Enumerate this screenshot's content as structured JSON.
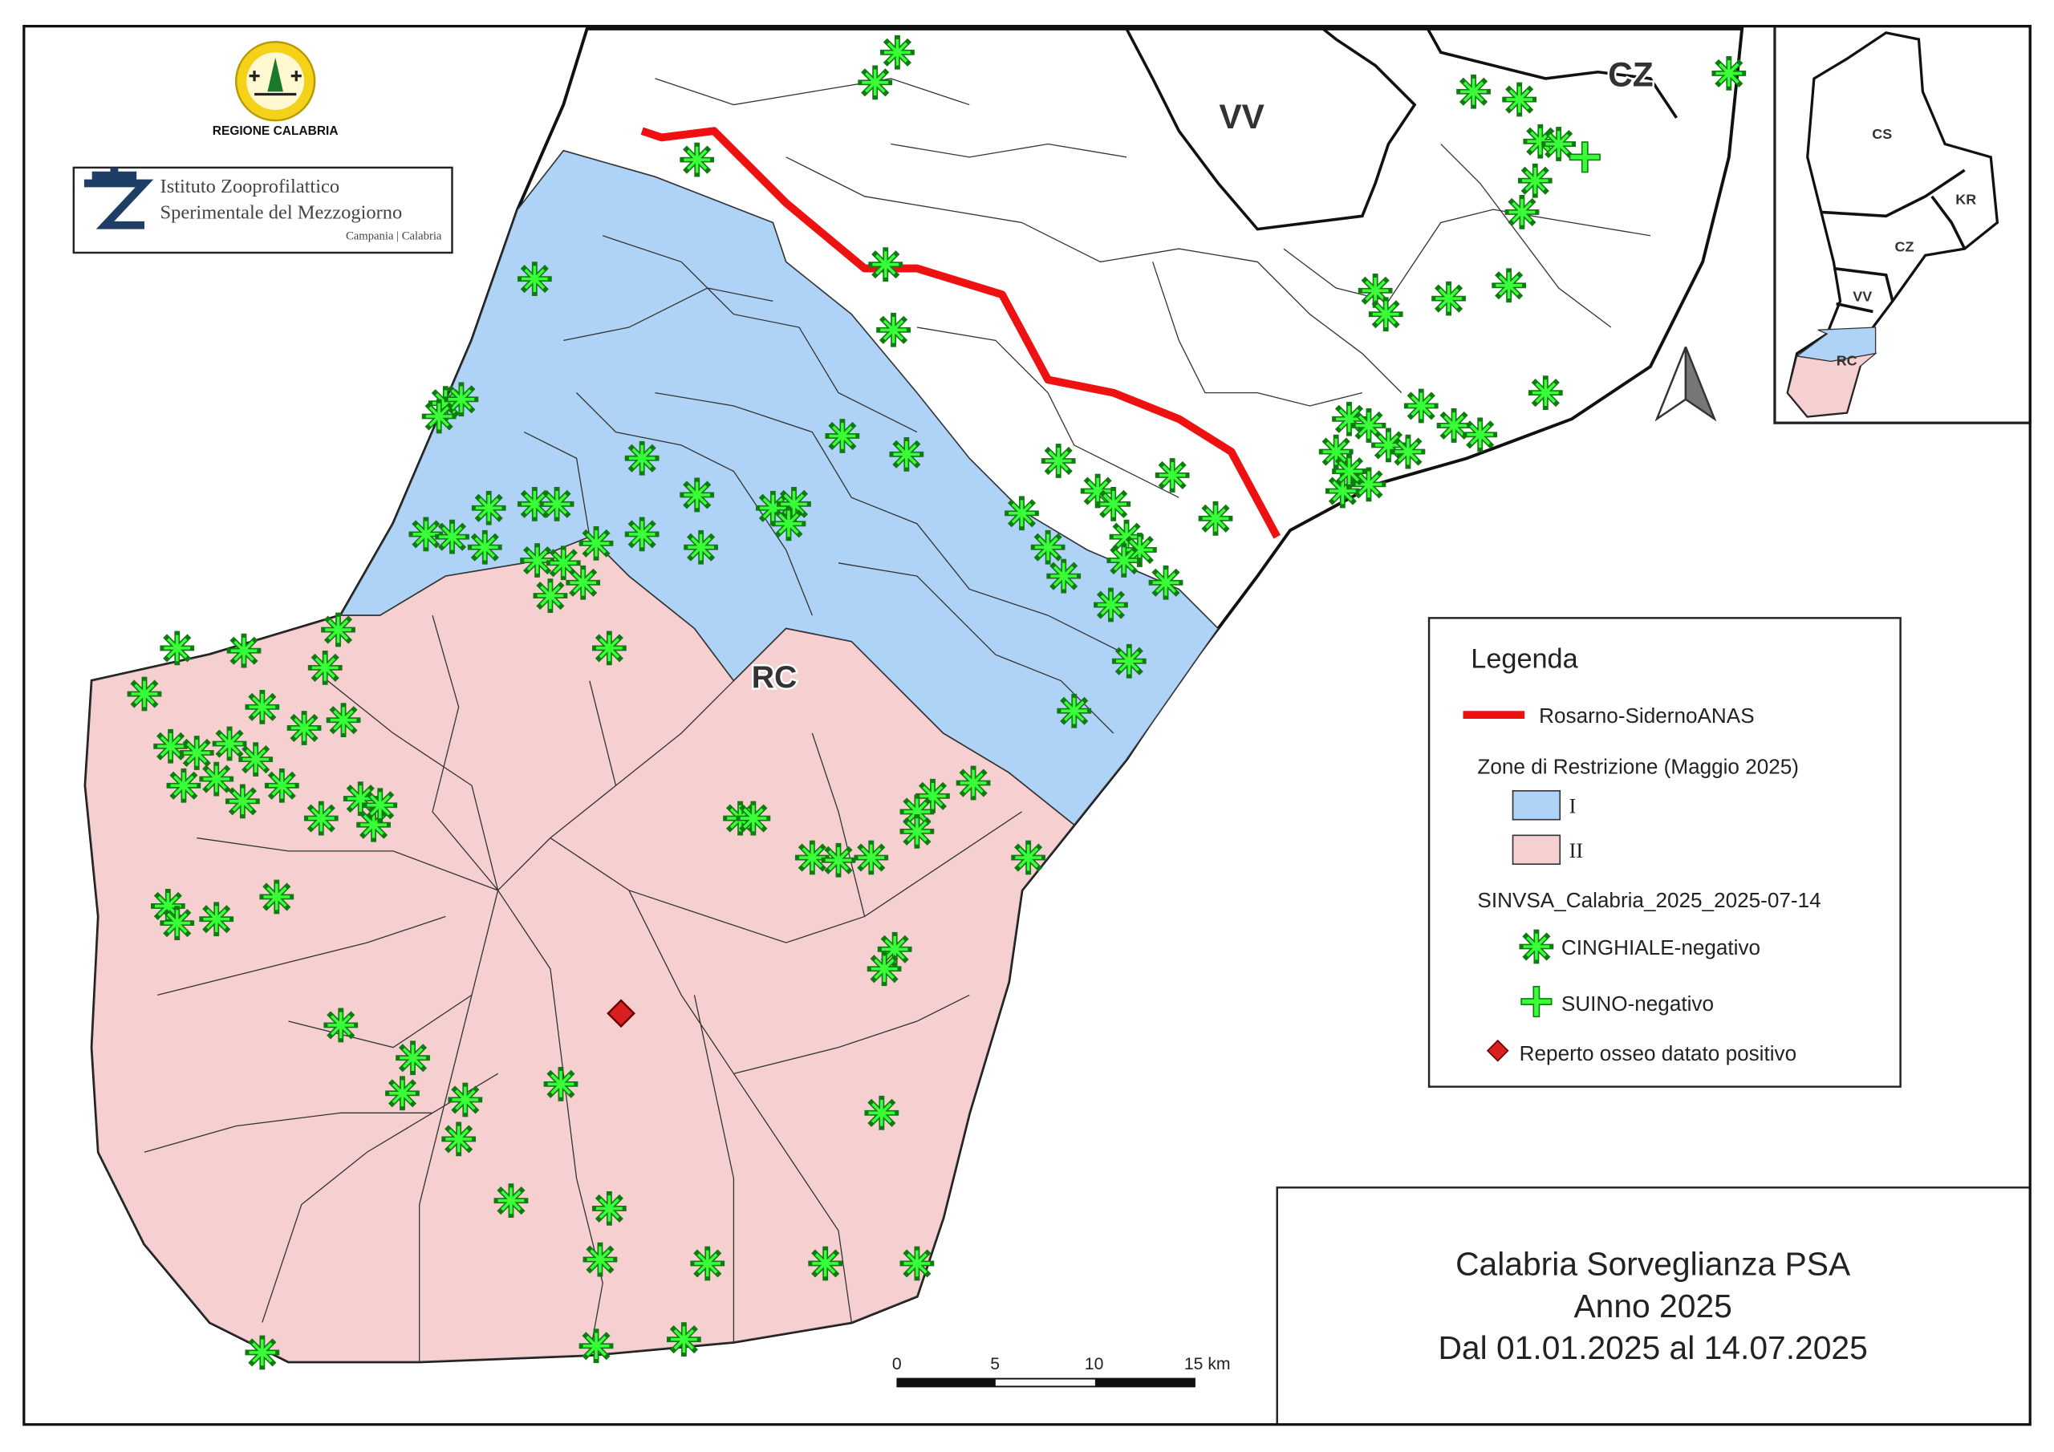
{
  "header": {
    "region_logo": "REGIONE CALABRIA",
    "institute": {
      "line1": "Istituto Zooprofilattico",
      "line2": "Sperimentale del Mezzogiorno",
      "line3": "Campania | Calabria"
    }
  },
  "map": {
    "labels": [
      "VV",
      "CZ",
      "RC"
    ]
  },
  "inset": {
    "labels": [
      "CS",
      "KR",
      "CZ",
      "VV",
      "RC"
    ]
  },
  "legend": {
    "title": "Legenda",
    "road": "Rosarno-SidernoANAS",
    "zones_title": "Zone di Restrizione (Maggio 2025)",
    "zones": [
      "I",
      "II"
    ],
    "layer": "SINVSA_Calabria_2025_2025-07-14",
    "items": [
      "CINGHIALE-negativo",
      "SUINO-negativo",
      "Reperto osseo datato positivo"
    ]
  },
  "scale_bar": {
    "labels": [
      "0",
      "5",
      "10",
      "15 km"
    ]
  },
  "title": {
    "lines": [
      "Calabria Sorveglianza PSA",
      "Anno 2025",
      "Dal 01.01.2025 al 14.07.2025"
    ]
  }
}
